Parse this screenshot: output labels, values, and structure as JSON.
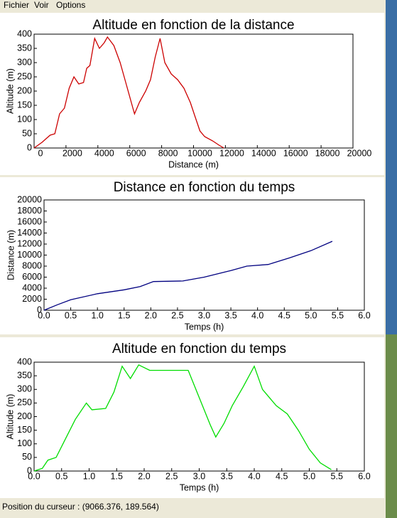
{
  "menu": [
    "Fichier",
    "Voir",
    "Options"
  ],
  "status": "Position du curseur : (9066.376, 189.564)",
  "chart_data": [
    {
      "type": "line",
      "title": "Altitude en fonction de la distance",
      "xlabel": "Distance (m)",
      "ylabel": "Altitude (m)",
      "xlim": [
        0,
        20000
      ],
      "ylim": [
        0,
        400
      ],
      "xticks": [
        0,
        2000,
        4000,
        6000,
        8000,
        10000,
        12000,
        14000,
        16000,
        18000,
        20000
      ],
      "yticks": [
        0,
        50,
        100,
        150,
        200,
        250,
        300,
        350,
        400
      ],
      "x": [
        0,
        500,
        1000,
        1300,
        1600,
        1900,
        2200,
        2500,
        2800,
        3100,
        3300,
        3500,
        3800,
        4100,
        4400,
        4600,
        5000,
        5400,
        5800,
        6100,
        6300,
        6600,
        7000,
        7300,
        7600,
        7900,
        8200,
        8600,
        9000,
        9400,
        9800,
        10100,
        10400,
        10700,
        11200,
        11600,
        11900
      ],
      "series": [
        {
          "color": "#cc0000",
          "values": [
            0,
            20,
            45,
            50,
            120,
            140,
            210,
            250,
            225,
            230,
            280,
            290,
            385,
            350,
            370,
            390,
            360,
            300,
            220,
            160,
            120,
            160,
            200,
            240,
            320,
            385,
            300,
            260,
            240,
            210,
            160,
            110,
            60,
            40,
            25,
            10,
            0
          ]
        }
      ]
    },
    {
      "type": "line",
      "title": "Distance en fonction du temps",
      "xlabel": "Temps (h)",
      "ylabel": "Distance (m)",
      "xlim": [
        0,
        6
      ],
      "ylim": [
        0,
        20000
      ],
      "xticks": [
        {
          "value": 0,
          "label": "0.0"
        },
        0.5,
        {
          "value": 1,
          "label": "1.0"
        },
        1.5,
        {
          "value": 2,
          "label": "2.0"
        },
        2.5,
        {
          "value": 3,
          "label": "3.0"
        },
        3.5,
        {
          "value": 4,
          "label": "4.0"
        },
        4.5,
        {
          "value": 5,
          "label": "5.0"
        },
        5.5,
        {
          "value": 6,
          "label": "6.0"
        }
      ],
      "yticks": [
        0,
        2000,
        4000,
        6000,
        8000,
        10000,
        12000,
        14000,
        16000,
        18000,
        20000
      ],
      "x": [
        0,
        0.25,
        0.5,
        1,
        1.5,
        1.8,
        2.05,
        2.6,
        3,
        3.5,
        3.8,
        4.2,
        4.6,
        5,
        5.4
      ],
      "series": [
        {
          "color": "#000080",
          "values": [
            0,
            1000,
            1900,
            3000,
            3700,
            4300,
            5200,
            5300,
            6000,
            7200,
            8000,
            8300,
            9500,
            10800,
            12500
          ]
        }
      ]
    },
    {
      "type": "line",
      "title": "Altitude en fonction du temps",
      "xlabel": "Temps (h)",
      "ylabel": "Altitude (m)",
      "xlim": [
        0,
        6
      ],
      "ylim": [
        0,
        400
      ],
      "xticks": [
        {
          "value": 0,
          "label": "0.0"
        },
        0.5,
        {
          "value": 1,
          "label": "1.0"
        },
        1.5,
        {
          "value": 2,
          "label": "2.0"
        },
        2.5,
        {
          "value": 3,
          "label": "3.0"
        },
        3.5,
        {
          "value": 4,
          "label": "4.0"
        },
        4.5,
        {
          "value": 5,
          "label": "5.0"
        },
        5.5,
        {
          "value": 6,
          "label": "6.0"
        }
      ],
      "yticks": [
        0,
        50,
        100,
        150,
        200,
        250,
        300,
        350,
        400
      ],
      "x": [
        0,
        0.15,
        0.25,
        0.4,
        0.55,
        0.75,
        0.95,
        1.05,
        1.3,
        1.45,
        1.6,
        1.75,
        1.9,
        2.1,
        2.8,
        3,
        3.2,
        3.3,
        3.45,
        3.6,
        3.8,
        4,
        4.15,
        4.4,
        4.6,
        4.8,
        5,
        5.2,
        5.4
      ],
      "series": [
        {
          "color": "#00dd00",
          "values": [
            0,
            10,
            40,
            50,
            110,
            190,
            250,
            225,
            230,
            290,
            385,
            340,
            390,
            370,
            370,
            270,
            170,
            125,
            175,
            240,
            310,
            385,
            300,
            240,
            210,
            150,
            80,
            30,
            5
          ]
        }
      ]
    }
  ]
}
